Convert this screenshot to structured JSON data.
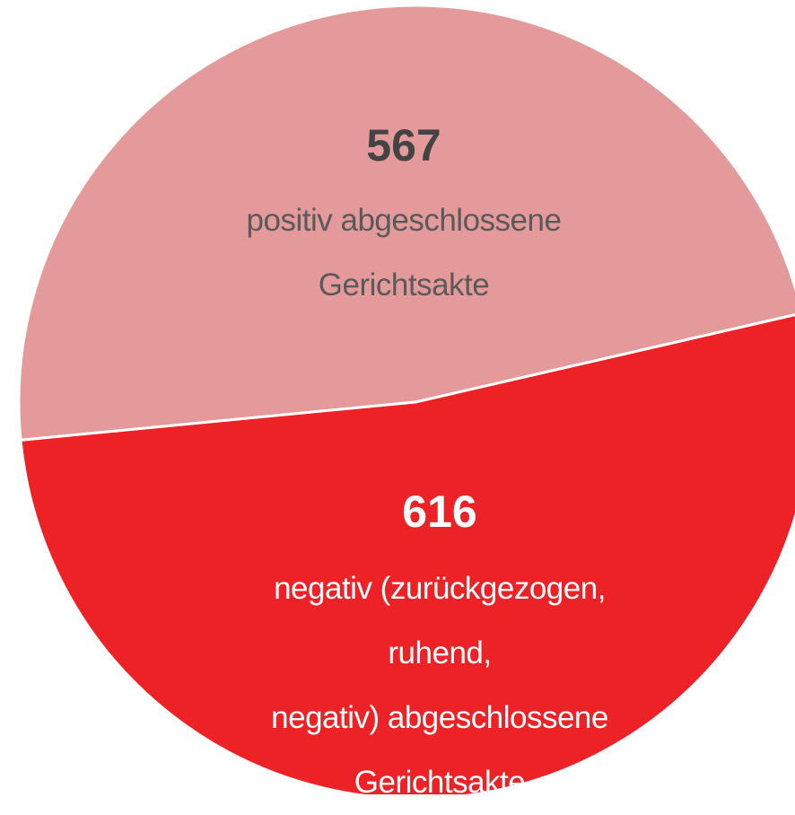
{
  "chart_data": {
    "type": "pie",
    "categories": [
      "positiv abgeschlossene\nGerichtsakte",
      "negativ (zurückgezogen, ruhend,\nnegativ) abgeschlossene\nGerichtsakte"
    ],
    "values": [
      567,
      616
    ],
    "colors": [
      "#e49a9a",
      "#ec2227"
    ]
  }
}
